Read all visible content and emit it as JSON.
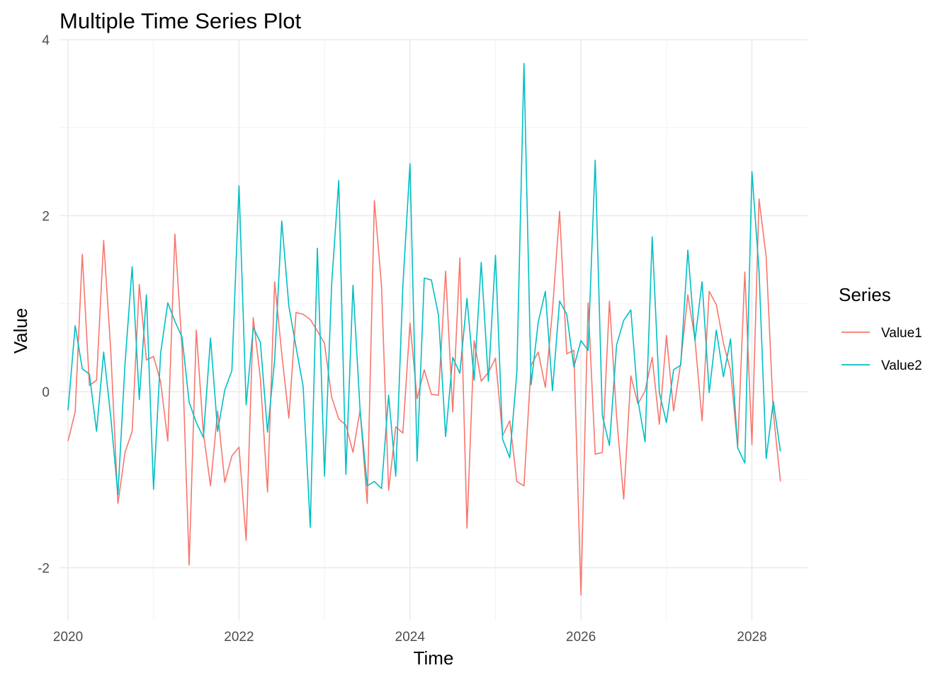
{
  "chart_data": {
    "type": "line",
    "title": "Multiple Time Series Plot",
    "xlabel": "Time",
    "ylabel": "Value",
    "xlim": [
      2019.9,
      2028.65
    ],
    "ylim": [
      -2.6,
      4.0
    ],
    "x_ticks": [
      2020,
      2022,
      2024,
      2026,
      2028
    ],
    "x_tick_labels": [
      "2020",
      "2022",
      "2024",
      "2026",
      "2028"
    ],
    "y_ticks": [
      -2,
      0,
      2,
      4
    ],
    "y_tick_labels": [
      "-2",
      "0",
      "2",
      "4"
    ],
    "grid": true,
    "legend": {
      "title": "Series",
      "position": "right"
    },
    "x_start": 2020,
    "x_step_months": 1,
    "series": [
      {
        "name": "Value1",
        "color": "#F8766D",
        "values": [
          -0.56,
          -0.23,
          1.56,
          0.07,
          0.13,
          1.72,
          0.46,
          -1.27,
          -0.69,
          -0.45,
          1.22,
          0.36,
          0.4,
          0.11,
          -0.56,
          1.79,
          0.5,
          -1.97,
          0.7,
          -0.47,
          -1.07,
          -0.22,
          -1.03,
          -0.73,
          -0.63,
          -1.69,
          0.84,
          0.15,
          -1.14,
          1.25,
          0.43,
          -0.3,
          0.9,
          0.88,
          0.82,
          0.69,
          0.55,
          -0.06,
          -0.31,
          -0.38,
          -0.69,
          -0.21,
          -1.27,
          2.17,
          1.21,
          -1.12,
          -0.4,
          -0.47,
          0.78,
          -0.08,
          0.25,
          -0.03,
          -0.04,
          1.37,
          -0.23,
          1.52,
          -1.55,
          0.58,
          0.12,
          0.22,
          0.38,
          -0.5,
          -0.33,
          -1.02,
          -1.07,
          0.3,
          0.45,
          0.05,
          0.92,
          2.05,
          0.43,
          0.47,
          -2.31,
          1.01,
          -0.71,
          -0.69,
          1.03,
          -0.28,
          -1.22,
          0.18,
          -0.14,
          0.01,
          0.39,
          -0.37,
          0.64,
          -0.22,
          0.33,
          1.1,
          0.6,
          -0.33,
          1.14,
          0.99,
          0.55,
          0.24,
          -0.63,
          1.36,
          -0.6,
          2.19,
          1.53,
          -0.24,
          -1.02
        ]
      },
      {
        "name": "Value2",
        "color": "#00BFC4",
        "values": [
          -0.21,
          0.75,
          0.26,
          0.2,
          -0.45,
          0.45,
          -0.29,
          -1.17,
          0.32,
          1.42,
          -0.09,
          1.1,
          -1.11,
          0.44,
          1.01,
          0.8,
          0.62,
          -0.12,
          -0.35,
          -0.52,
          0.61,
          -0.45,
          0.02,
          0.24,
          2.34,
          -0.15,
          0.73,
          0.56,
          -0.46,
          0.36,
          1.94,
          0.97,
          0.51,
          0.06,
          -1.54,
          1.63,
          -0.96,
          1.22,
          2.4,
          -0.94,
          1.21,
          -0.22,
          -1.07,
          -1.02,
          -1.1,
          -0.04,
          -0.96,
          1.2,
          2.59,
          -0.79,
          1.29,
          1.27,
          0.87,
          -0.51,
          0.39,
          0.21,
          1.06,
          0.13,
          1.47,
          0.12,
          1.55,
          -0.54,
          -0.75,
          0.22,
          3.73,
          0.08,
          0.79,
          1.14,
          0.01,
          1.03,
          0.88,
          0.28,
          0.58,
          0.47,
          2.63,
          -0.27,
          -0.61,
          0.53,
          0.81,
          0.93,
          -0.1,
          -0.57,
          1.76,
          -0.01,
          -0.35,
          0.25,
          0.3,
          1.61,
          0.58,
          1.25,
          -0.01,
          0.7,
          0.17,
          0.6,
          -0.64,
          -0.81,
          2.5,
          1.37,
          -0.76,
          -0.11,
          -0.68
        ]
      }
    ]
  }
}
